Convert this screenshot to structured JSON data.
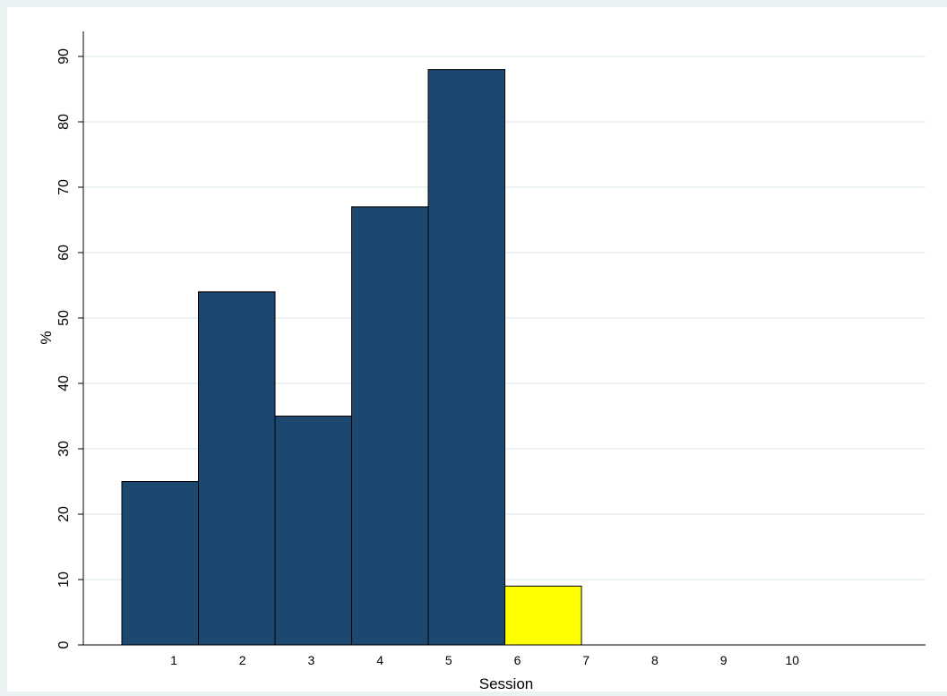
{
  "chart_data": {
    "type": "bar",
    "xlabel": "Session",
    "ylabel": "%",
    "ylim": [
      0,
      93
    ],
    "yticks": [
      0,
      10,
      20,
      30,
      40,
      50,
      60,
      70,
      80,
      90
    ],
    "xticks": [
      1,
      2,
      3,
      4,
      5,
      6,
      7,
      8,
      9,
      10
    ],
    "grid": true,
    "bars": [
      {
        "session": 1,
        "value": 25,
        "color": "#1c476f"
      },
      {
        "session": 2,
        "value": 54,
        "color": "#1c476f"
      },
      {
        "session": 3,
        "value": 35,
        "color": "#1c476f"
      },
      {
        "session": 4,
        "value": 67,
        "color": "#1c476f"
      },
      {
        "session": 5,
        "value": 88,
        "color": "#1c476f"
      },
      {
        "session": 6,
        "value": 9,
        "color": "#ffff00"
      }
    ],
    "colors": {
      "background": "#eaf2f3",
      "plot_area": "#ffffff",
      "grid": "#eaf2f3",
      "bar_default": "#1c476f",
      "bar_highlight": "#ffff00"
    }
  }
}
